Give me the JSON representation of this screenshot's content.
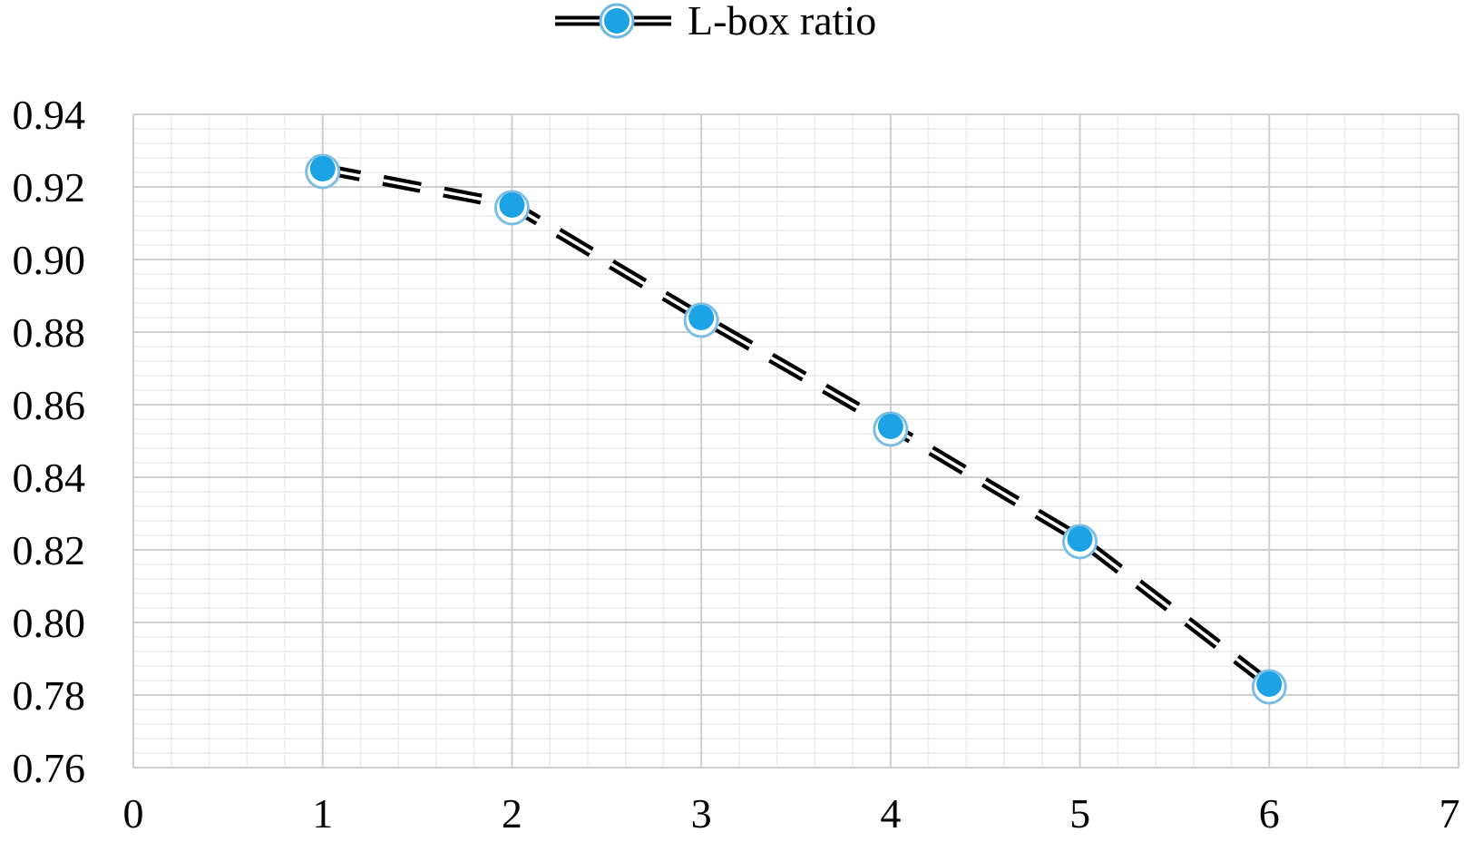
{
  "chart_data": {
    "type": "line",
    "title": "",
    "xlabel": "",
    "ylabel": "",
    "x_ticks": [
      "0",
      "1",
      "2",
      "3",
      "4",
      "5",
      "6",
      "7"
    ],
    "y_ticks": [
      "0.76",
      "0.78",
      "0.80",
      "0.82",
      "0.84",
      "0.86",
      "0.88",
      "0.90",
      "0.92",
      "0.94"
    ],
    "xlim": [
      0,
      7
    ],
    "ylim": [
      0.76,
      0.94
    ],
    "grid": true,
    "minor_grid": true,
    "legend_position": "top-center",
    "series": [
      {
        "name": "L-box ratio",
        "x": [
          1,
          2,
          3,
          4,
          5,
          6
        ],
        "y": [
          0.925,
          0.915,
          0.884,
          0.854,
          0.823,
          0.783
        ],
        "line_style": "double-dashed",
        "line_color": "#000000",
        "marker_color": "#1ba3e6"
      }
    ]
  }
}
